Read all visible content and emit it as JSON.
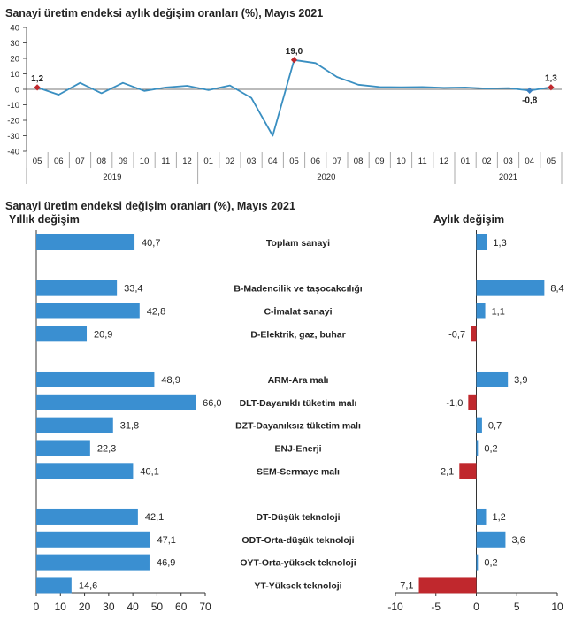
{
  "chart_data": [
    {
      "type": "line",
      "title": "Sanayi üretim endeksi aylık değişim oranları (%), Mayıs 2021",
      "x": [
        "05",
        "06",
        "07",
        "08",
        "09",
        "10",
        "11",
        "12",
        "01",
        "02",
        "03",
        "04",
        "05",
        "06",
        "07",
        "08",
        "09",
        "10",
        "11",
        "12",
        "01",
        "02",
        "03",
        "04",
        "05"
      ],
      "year_groups": [
        {
          "label": "2019",
          "count": 8
        },
        {
          "label": "2020",
          "count": 12
        },
        {
          "label": "2021",
          "count": 5
        }
      ],
      "values": [
        1.2,
        -3.5,
        4.2,
        -2.5,
        4.2,
        -1.0,
        1.2,
        2.3,
        -0.5,
        2.5,
        -5.5,
        -30.0,
        19.0,
        17.0,
        8.0,
        3.0,
        1.5,
        1.3,
        1.5,
        1.0,
        1.2,
        0.5,
        0.8,
        -0.8,
        1.3
      ],
      "highlighted_points": [
        {
          "index": 0,
          "label": "1,2",
          "color": "#c0282d"
        },
        {
          "index": 12,
          "label": "19,0",
          "color": "#c0282d"
        },
        {
          "index": 23,
          "label": "-0,8",
          "color": "#3a7fc1"
        },
        {
          "index": 24,
          "label": "1,3",
          "color": "#c0282d"
        }
      ],
      "ylim": [
        -40,
        40
      ],
      "yticks": [
        "40",
        "30",
        "20",
        "10",
        "0",
        "-10",
        "-20",
        "-30",
        "-40"
      ],
      "line_color": "#3a8fc1"
    },
    {
      "type": "bar",
      "title": "Sanayi üretim endeksi değişim oranları (%), Mayıs 2021",
      "categories": [
        "Toplam sanayi",
        "B-Madencilik ve taşocakcılığı",
        "C-İmalat sanayi",
        "D-Elektrik, gaz, buhar",
        "ARM-Ara malı",
        "DLT-Dayanıklı tüketim malı",
        "DZT-Dayanıksız tüketim malı",
        "ENJ-Enerji",
        "SEM-Sermaye malı",
        "DT-Düşük teknoloji",
        "ODT-Orta-düşük teknoloji",
        "OYT-Orta-yüksek teknoloji",
        "YT-Yüksek teknoloji"
      ],
      "series": [
        {
          "name": "Yıllık değişim",
          "values": [
            40.7,
            33.4,
            42.8,
            20.9,
            48.9,
            66.0,
            31.8,
            22.3,
            40.1,
            42.1,
            47.1,
            46.9,
            14.6
          ],
          "labels": [
            "40,7",
            "33,4",
            "42,8",
            "20,9",
            "48,9",
            "66,0",
            "31,8",
            "22,3",
            "40,1",
            "42,1",
            "47,1",
            "46,9",
            "14,6"
          ],
          "xlim": [
            0,
            70
          ],
          "xticks": [
            "0",
            "10",
            "20",
            "30",
            "40",
            "50",
            "60",
            "70"
          ]
        },
        {
          "name": "Aylık değişim",
          "values": [
            1.3,
            8.4,
            1.1,
            -0.7,
            3.9,
            -1.0,
            0.7,
            0.2,
            -2.1,
            1.2,
            3.6,
            0.2,
            -7.1
          ],
          "labels": [
            "1,3",
            "8,4",
            "1,1",
            "-0,7",
            "3,9",
            "-1,0",
            "0,7",
            "0,2",
            "-2,1",
            "1,2",
            "3,6",
            "0,2",
            "-7,1"
          ],
          "xlim": [
            -10,
            10
          ],
          "xticks": [
            "-10",
            "-5",
            "0",
            "5",
            "10"
          ]
        }
      ],
      "colors": {
        "positive": "#3a8fd1",
        "negative": "#c0282d"
      }
    }
  ]
}
